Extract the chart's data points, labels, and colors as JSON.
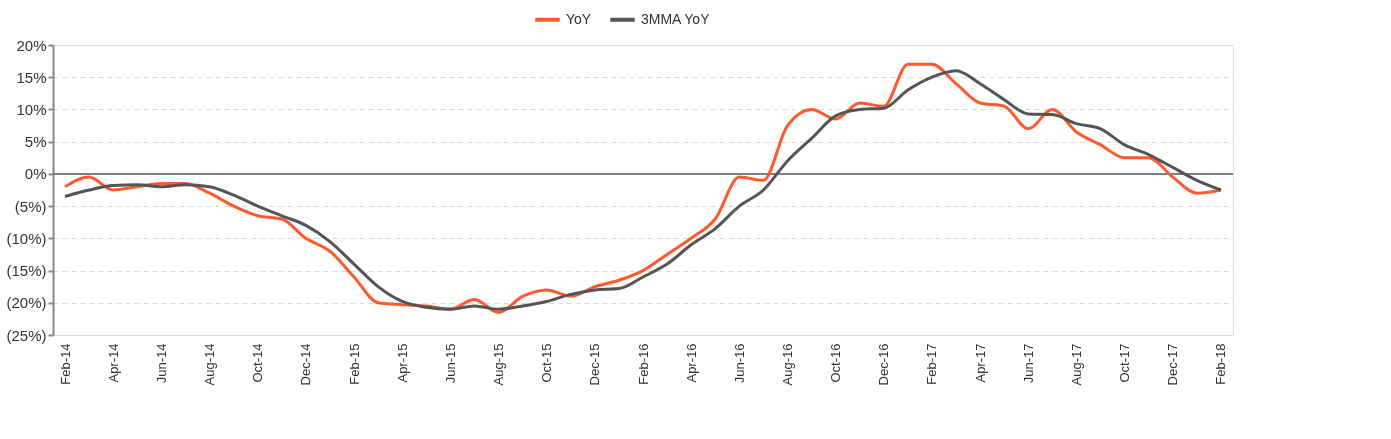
{
  "chart_data": {
    "type": "line",
    "categories": [
      "Feb-14",
      null,
      "Apr-14",
      null,
      "Jun-14",
      null,
      "Aug-14",
      null,
      "Oct-14",
      null,
      "Dec-14",
      null,
      "Feb-15",
      null,
      "Apr-15",
      null,
      "Jun-15",
      null,
      "Aug-15",
      null,
      "Oct-15",
      null,
      "Dec-15",
      null,
      "Feb-16",
      null,
      "Apr-16",
      null,
      "Jun-16",
      null,
      "Aug-16",
      null,
      "Oct-16",
      null,
      "Dec-16",
      null,
      "Feb-17",
      null,
      "Apr-17",
      null,
      "Jun-17",
      null,
      "Aug-17",
      null,
      "Oct-17",
      null,
      "Dec-17",
      null,
      "Feb-18"
    ],
    "series": [
      {
        "name": "YoY",
        "color": "#ff5a2e",
        "values": [
          -2.0,
          -0.5,
          -2.5,
          -2.0,
          -1.5,
          -1.5,
          -3.0,
          -5.0,
          -6.5,
          -7.0,
          -10.0,
          -12.0,
          -16.0,
          -20.0,
          -20.3,
          -20.5,
          -21.0,
          -19.5,
          -21.5,
          -19.0,
          -18.0,
          -19.0,
          -17.5,
          -16.5,
          -15.0,
          -12.5,
          -10.0,
          -7.0,
          -0.5,
          -1.0,
          7.5,
          10.0,
          8.5,
          11.0,
          10.5,
          17.0,
          17.0,
          14.0,
          11.0,
          10.5,
          7.0,
          10.0,
          6.5,
          4.5,
          2.5,
          2.5,
          -0.5,
          -3.0,
          -2.5
        ]
      },
      {
        "name": "3MMA YoY",
        "color": "#555555",
        "values": [
          -3.5,
          -2.5,
          -1.8,
          -1.7,
          -2.0,
          -1.7,
          -2.0,
          -3.3,
          -5.0,
          -6.5,
          -8.0,
          -10.5,
          -14.0,
          -17.5,
          -19.8,
          -20.7,
          -21.0,
          -20.5,
          -21.0,
          -20.5,
          -19.8,
          -18.7,
          -18.0,
          -17.8,
          -16.0,
          -14.0,
          -11.0,
          -8.5,
          -5.0,
          -2.5,
          2.0,
          5.5,
          9.0,
          10.0,
          10.2,
          13.0,
          15.0,
          16.0,
          14.0,
          11.5,
          9.3,
          9.2,
          7.8,
          7.0,
          4.5,
          3.0,
          1.0,
          -1.0,
          -2.5
        ]
      }
    ],
    "ylim": [
      -25,
      20
    ],
    "yticks": [
      {
        "value": -25,
        "label": "(25%)"
      },
      {
        "value": -20,
        "label": "(20%)"
      },
      {
        "value": -15,
        "label": "(15%)"
      },
      {
        "value": -10,
        "label": "(10%)"
      },
      {
        "value": -5,
        "label": "(5%)"
      },
      {
        "value": 0,
        "label": "0%"
      },
      {
        "value": 5,
        "label": "5%"
      },
      {
        "value": 10,
        "label": "10%"
      },
      {
        "value": 15,
        "label": "15%"
      },
      {
        "value": 20,
        "label": "20%"
      }
    ],
    "ref_lines": [
      {
        "axis": "y",
        "value": 0,
        "color": "#7f7f7f"
      }
    ],
    "grid": "y",
    "legend": "top",
    "line_style": "solid",
    "marker": "none"
  }
}
